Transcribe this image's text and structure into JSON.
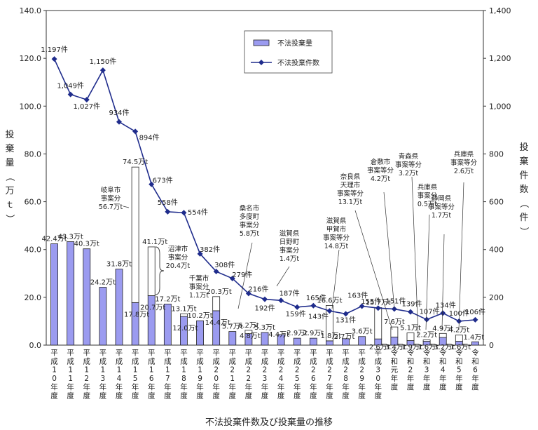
{
  "chart_data": {
    "type": "bar+line",
    "title": "不法投棄件数及び投棄量の推移",
    "y_left": {
      "label": "投棄量（万ｔ）",
      "ticks": [
        "0.0",
        "20.0",
        "40.0",
        "60.0",
        "80.0",
        "100.0",
        "120.0",
        "140.0"
      ],
      "range": [
        0,
        140
      ]
    },
    "y_right": {
      "label": "投棄件数（件）",
      "ticks": [
        "0",
        "200",
        "400",
        "600",
        "800",
        "1,000",
        "1,200",
        "1,400"
      ],
      "range": [
        0,
        1400
      ]
    },
    "legend": {
      "bar": "不法投棄量",
      "line": "不法投棄件数"
    },
    "categories": [
      "平成10年度",
      "平成11年度",
      "平成12年度",
      "平成13年度",
      "平成14年度",
      "平成15年度",
      "平成16年度",
      "平成17年度",
      "平成18年度",
      "平成19年度",
      "平成20年度",
      "平成21年度",
      "平成22年度",
      "平成23年度",
      "平成24年度",
      "平成25年度",
      "平成26年度",
      "平成27年度",
      "平成28年度",
      "平成29年度",
      "平成30年度",
      "令和元年度",
      "令和2年度",
      "令和3年度",
      "令和4年度",
      "令和5年度",
      "令和6年度"
    ],
    "tonnage_base": [
      42.4,
      43.3,
      40.3,
      24.2,
      31.8,
      17.8,
      20.7,
      17.2,
      12.0,
      10.2,
      14.4,
      5.7,
      4.8,
      5.3,
      4.4,
      2.9,
      2.9,
      1.8,
      2.7,
      3.6,
      2.6,
      3.4,
      1.9,
      1.6,
      3.2,
      1.6,
      1.4
    ],
    "tonnage_total": [
      42.4,
      43.3,
      40.3,
      24.2,
      31.8,
      74.5,
      41.1,
      17.2,
      13.1,
      10.2,
      20.3,
      5.7,
      6.2,
      5.3,
      4.4,
      2.9,
      2.9,
      16.6,
      2.7,
      3.6,
      15.7,
      7.6,
      5.1,
      2.2,
      4.9,
      4.2,
      1.4
    ],
    "tonnage_labels": [
      "42.4万t",
      "43.3万t",
      "40.3万t",
      "24.2万t",
      "31.8万t",
      "74.5万t",
      "41.1万t",
      "17.2万t",
      "13.1万t",
      "10.2万t",
      "20.3万t",
      "5.7万t",
      "6.2万t",
      "5.3万t",
      "4.4万t",
      "2.9万t",
      "2.9万t",
      "16.6万t",
      "2.7万t",
      "3.6万t",
      "15.7万t",
      "7.6万t",
      "5.1万t",
      "2.2万t",
      "4.9万t",
      "4.2万t",
      "1.4万t"
    ],
    "tonnage_base_labels": {
      "5": "17.8万t",
      "6": "20.7万t",
      "8": "12.0万t",
      "10": "14.4万t",
      "12": "4.8万t",
      "17": "1.8万t",
      "20": "2.6万t",
      "21": "3.4万t",
      "22": "1.9万t",
      "23": "1.6万t",
      "24": "3.2万t",
      "25": "1.6万t"
    },
    "counts": [
      1197,
      1049,
      1027,
      1150,
      934,
      894,
      673,
      558,
      554,
      382,
      308,
      279,
      216,
      192,
      187,
      159,
      165,
      143,
      131,
      163,
      155,
      151,
      139,
      107,
      134,
      100,
      106
    ],
    "count_labels": [
      "1,197件",
      "1,049件",
      "1,027件",
      "1,150件",
      "934件",
      "894件",
      "673件",
      "558件",
      "554件",
      "382件",
      "308件",
      "279件",
      "216件",
      "192件",
      "187件",
      "159件",
      "165件",
      "143件",
      "131件",
      "163件",
      "155件",
      "151件",
      "139件",
      "107件",
      "134件",
      "100件",
      "106件"
    ],
    "annotations": [
      {
        "lines": [
          "岐阜市",
          "事案分",
          "56.7万t"
        ]
      },
      {
        "lines": [
          "沼津市",
          "事案分",
          "20.4万t"
        ]
      },
      {
        "lines": [
          "千葉市",
          "事案分",
          "1.1万t"
        ]
      },
      {
        "lines": [
          "桑名市",
          "多度町",
          "事案分",
          "5.8万t"
        ]
      },
      {
        "lines": [
          "滋賀県",
          "日野町",
          "事案分",
          "1.4万t"
        ]
      },
      {
        "lines": [
          "奈良県",
          "天理市",
          "事案等分",
          "13.1万t"
        ]
      },
      {
        "lines": [
          "滋賀県",
          "甲賀市",
          "事案等分",
          "14.8万t"
        ]
      },
      {
        "lines": [
          "倉敷市",
          "事案等分",
          "4.2万t"
        ]
      },
      {
        "lines": [
          "青森県",
          "事案等分",
          "3.2万t"
        ]
      },
      {
        "lines": [
          "兵庫県",
          "事案分",
          "0.5万t"
        ]
      },
      {
        "lines": [
          "静岡県",
          "事案等分",
          "1.7万t"
        ]
      },
      {
        "lines": [
          "兵庫県",
          "事案等分",
          "2.6万t"
        ]
      }
    ],
    "colors": {
      "bar_fill": "#9b9bf0",
      "bar_stroke": "#222222",
      "line": "#1f2c8c",
      "marker": "#1f2c8c"
    }
  }
}
